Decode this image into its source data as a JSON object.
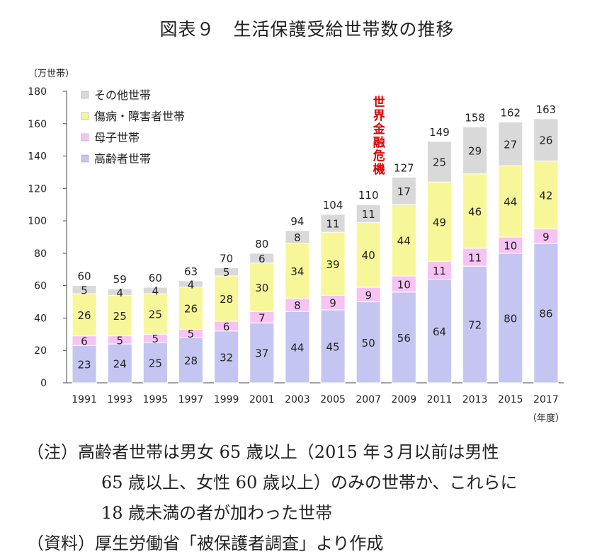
{
  "title": "図表９　生活保護受給世帯数の推移",
  "chart_data": {
    "type": "bar",
    "stacked": true,
    "unit_label": "（万世帯）",
    "x_unit_label": "（年度）",
    "categories": [
      "1991",
      "1993",
      "1995",
      "1997",
      "1999",
      "2001",
      "2003",
      "2005",
      "2007",
      "2009",
      "2011",
      "2013",
      "2015",
      "2017"
    ],
    "ylim": [
      0,
      180
    ],
    "yticks": [
      0,
      20,
      40,
      60,
      80,
      100,
      120,
      140,
      160,
      180
    ],
    "grid": false,
    "legend_position": "top-left",
    "series": [
      {
        "name": "高齢者世帯",
        "color": "#c5c5f2",
        "values": [
          23,
          24,
          25,
          28,
          32,
          37,
          44,
          45,
          50,
          56,
          64,
          72,
          80,
          86
        ]
      },
      {
        "name": "母子世帯",
        "color": "#f7c3f4",
        "values": [
          6,
          5,
          5,
          5,
          6,
          7,
          8,
          9,
          9,
          10,
          11,
          11,
          10,
          9
        ]
      },
      {
        "name": "傷病・障害者世帯",
        "color": "#f7f79a",
        "values": [
          26,
          25,
          25,
          26,
          28,
          30,
          34,
          39,
          40,
          44,
          49,
          46,
          44,
          42
        ]
      },
      {
        "name": "その他世帯",
        "color": "#d9d9d9",
        "values": [
          5,
          4,
          4,
          4,
          5,
          6,
          8,
          11,
          11,
          17,
          25,
          29,
          27,
          26
        ]
      }
    ],
    "totals": [
      60,
      59,
      60,
      63,
      70,
      80,
      94,
      104,
      110,
      127,
      149,
      158,
      162,
      163
    ],
    "annotation": {
      "text": "世界金融危機",
      "color": "#dd0000",
      "category": "2007"
    }
  },
  "notes": {
    "line1": "（注）高齢者世帯は男女 65 歳以上（2015 年３月以前は男性",
    "line2": "65 歳以上、女性 60 歳以上）のみの世帯か、これらに",
    "line3": "18 歳未満の者が加わった世帯",
    "line4": "（資料）厚生労働省「被保護者調査」より作成"
  }
}
